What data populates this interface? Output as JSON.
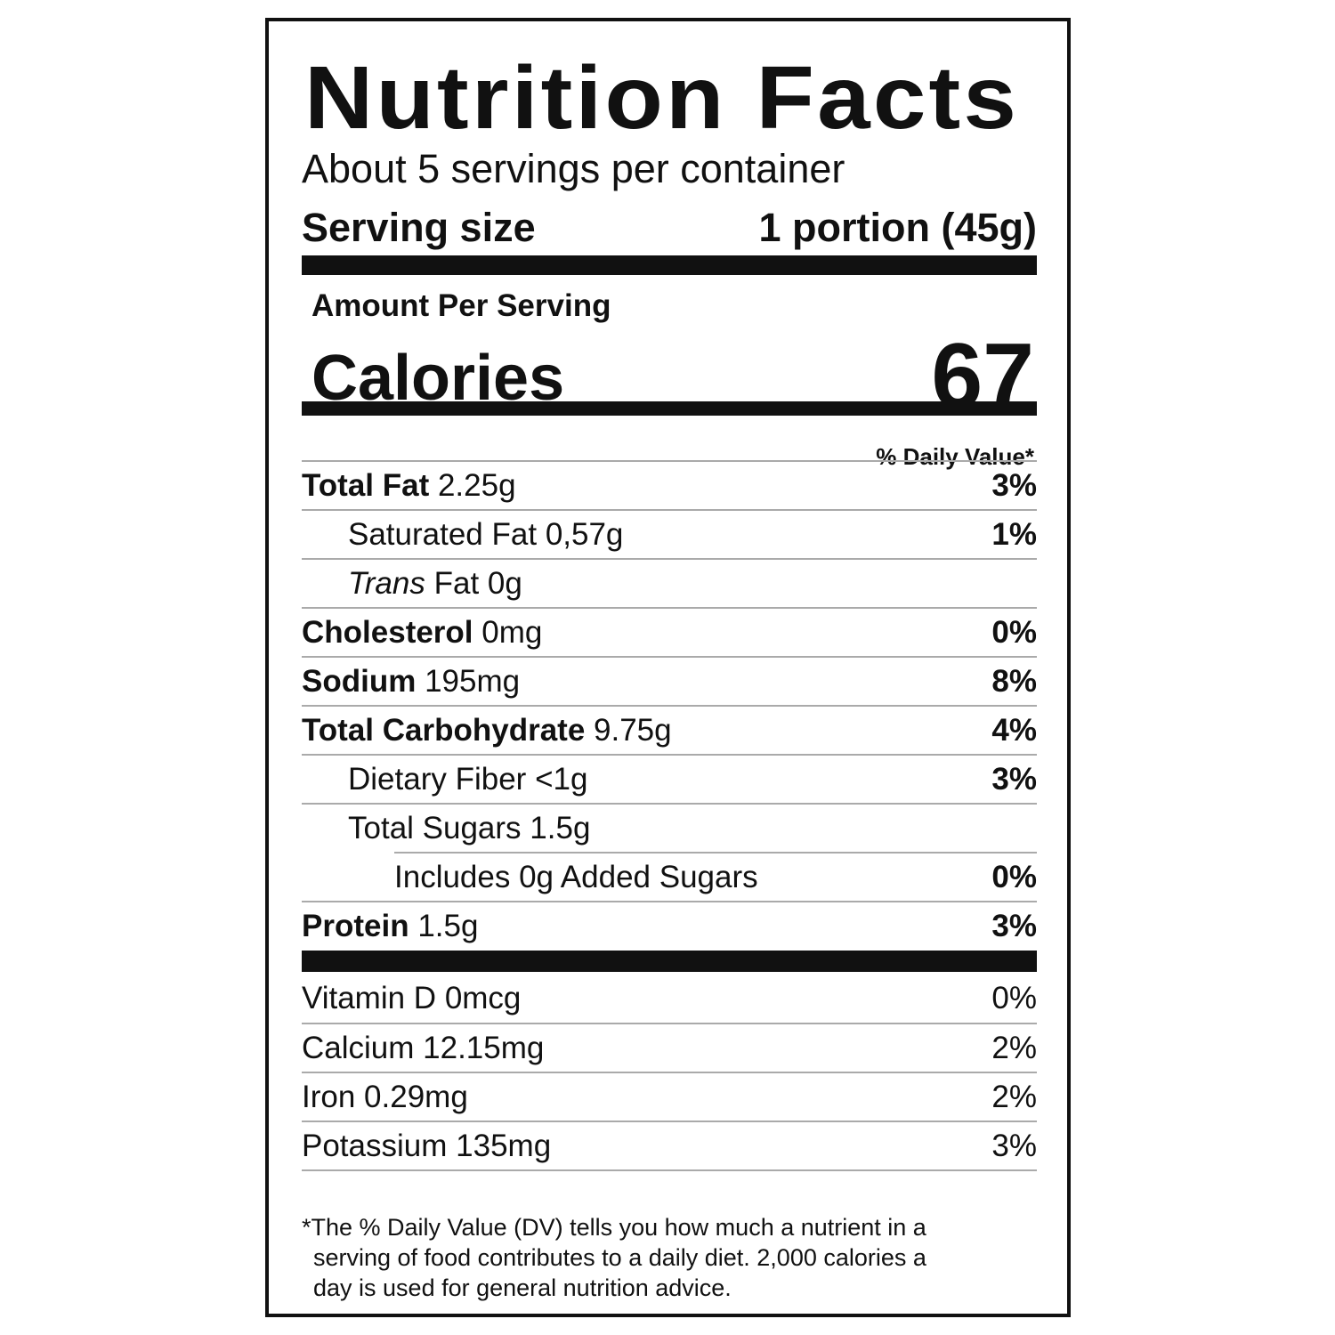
{
  "title": "Nutrition Facts",
  "servings_per_container": "About 5 servings per container",
  "serving_size": {
    "label": "Serving size",
    "value": "1 portion (45g)"
  },
  "amount_per_serving": "Amount Per Serving",
  "calories": {
    "label": "Calories",
    "value": "67"
  },
  "daily_value_header": "% Daily Value*",
  "nutrients": [
    {
      "name": "Total Fat",
      "amount": "2.25g",
      "dv": "3%",
      "bold": true,
      "indent": 0
    },
    {
      "name": "Saturated Fat",
      "amount": "0,57g",
      "dv": "1%",
      "bold": false,
      "indent": 1
    },
    {
      "italic": "Trans",
      "name": "Fat",
      "amount": "0g",
      "dv": "",
      "bold": false,
      "indent": 1
    },
    {
      "name": "Cholesterol",
      "amount": "0mg",
      "dv": "0%",
      "bold": true,
      "indent": 0
    },
    {
      "name": "Sodium",
      "amount": "195mg",
      "dv": "8%",
      "bold": true,
      "indent": 0
    },
    {
      "name": "Total Carbohydrate",
      "amount": "9.75g",
      "dv": "4%",
      "bold": true,
      "indent": 0
    },
    {
      "name": "Dietary Fiber",
      "amount": "<1g",
      "dv": "3%",
      "bold": false,
      "indent": 1
    },
    {
      "name": "Total Sugars",
      "amount": "1.5g",
      "dv": "",
      "bold": false,
      "indent": 1
    },
    {
      "name": "Includes 0g Added Sugars",
      "amount": "",
      "dv": "0%",
      "bold": false,
      "indent": 2
    },
    {
      "name": "Protein",
      "amount": "1.5g",
      "dv": "3%",
      "bold": true,
      "indent": 0
    }
  ],
  "micronutrients": [
    {
      "name": "Vitamin D",
      "amount": "0mcg",
      "dv": "0%"
    },
    {
      "name": "Calcium",
      "amount": "12.15mg",
      "dv": "2%"
    },
    {
      "name": "Iron",
      "amount": "0.29mg",
      "dv": "2%"
    },
    {
      "name": "Potassium",
      "amount": "135mg",
      "dv": "3%"
    }
  ],
  "footnote": {
    "line1": "*The % Daily Value (DV) tells you how much a nutrient in a",
    "line2": "serving of food contributes to a daily diet. 2,000 calories a",
    "line3": "day is used for general nutrition advice."
  }
}
